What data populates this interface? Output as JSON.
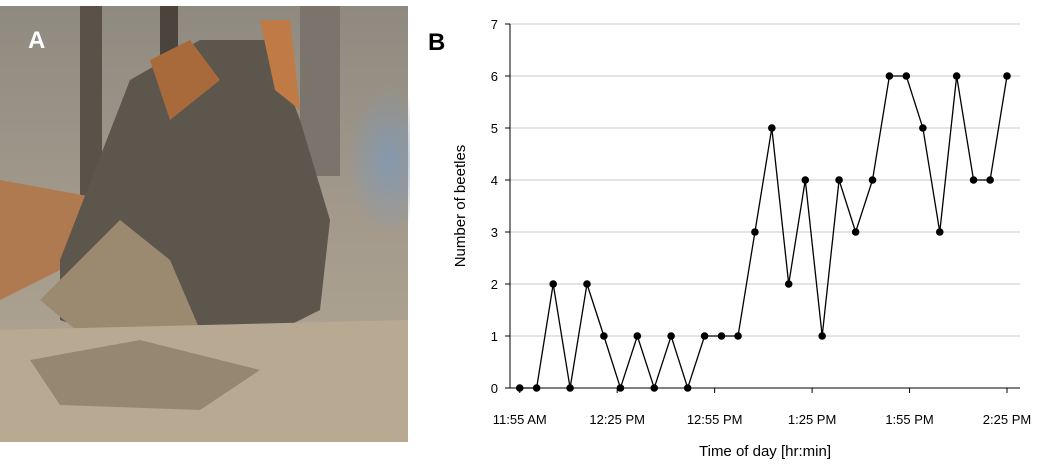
{
  "panels": {
    "photo_label": "A",
    "chart_label": "B"
  },
  "chart_data": {
    "type": "line",
    "xlabel": "Time of day [hr:min]",
    "ylabel": "Number of beetles",
    "x": [
      715,
      720.2,
      725.3,
      730.5,
      735.7,
      740.9,
      746.0,
      751.2,
      756.4,
      761.6,
      766.7,
      771.9,
      777.1,
      782.2,
      787.4,
      792.6,
      797.8,
      802.9,
      808.1,
      813.3,
      818.4,
      823.6,
      828.8,
      834.0,
      839.1,
      844.3,
      849.5,
      854.7,
      859.8,
      865
    ],
    "series": [
      {
        "name": "Beetles",
        "color": "#000000",
        "values": [
          0,
          0,
          2,
          0,
          2,
          1,
          0,
          1,
          0,
          1,
          0,
          1,
          1,
          1,
          3,
          5,
          2,
          4,
          1,
          4,
          3,
          4,
          6,
          6,
          5,
          3,
          6,
          4,
          4,
          6
        ]
      }
    ],
    "xlim": [
      712,
      869
    ],
    "xticks": [
      {
        "value": 715,
        "label": "11:55 AM"
      },
      {
        "value": 745,
        "label": "12:25 PM"
      },
      {
        "value": 775,
        "label": "12:55 PM"
      },
      {
        "value": 805,
        "label": "1:25 PM"
      },
      {
        "value": 835,
        "label": "1:55 PM"
      },
      {
        "value": 865,
        "label": "2:25 PM"
      }
    ],
    "ylim": [
      0,
      7
    ],
    "yticks": [
      0,
      1,
      2,
      3,
      4,
      5,
      6,
      7
    ],
    "grid": true
  }
}
